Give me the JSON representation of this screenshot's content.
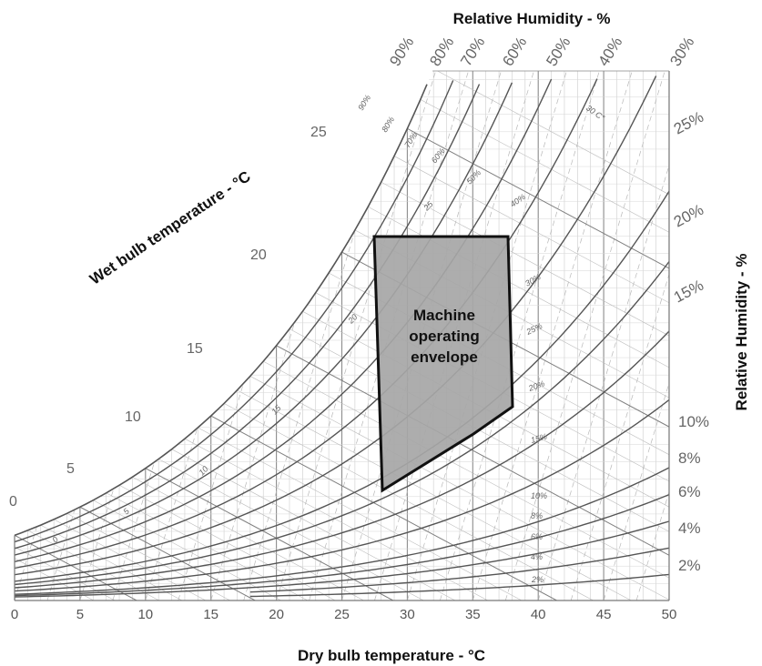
{
  "chart_data": {
    "type": "psychrometric",
    "title": "",
    "xlabel": "Dry bulb temperature - °C",
    "wet_bulb_axis_label": "Wet bulb temperature - °C",
    "rh_top_label": "Relative Humidity - %",
    "rh_right_label": "Relative Humidity - %",
    "xlim": [
      0,
      50
    ],
    "x_ticks": [
      "0",
      "5",
      "10",
      "15",
      "20",
      "25",
      "30",
      "35",
      "40",
      "45",
      "50"
    ],
    "rh_top_ticks": [
      "90%",
      "80%",
      "70%",
      "60%",
      "50%",
      "40%",
      "30%"
    ],
    "rh_right_ticks": [
      "25%",
      "20%",
      "15%",
      "10%",
      "8%",
      "6%",
      "4%",
      "2%"
    ],
    "rh_inline_labels": [
      "90%",
      "80%",
      "70%",
      "60%",
      "50%",
      "40%",
      "30%",
      "25%",
      "20%",
      "15%",
      "10%",
      "8%",
      "6%",
      "4%",
      "2%"
    ],
    "wet_bulb_ticks": [
      "0",
      "5",
      "10",
      "15",
      "20",
      "25"
    ],
    "wet_bulb_inline_labels": [
      "0",
      "5",
      "10",
      "15",
      "20",
      "25"
    ],
    "dry_bulb_inline_label": "30 C°",
    "envelope": {
      "label_lines": [
        "Machine",
        "operating",
        "envelope"
      ],
      "fill": "#a6a6a6",
      "corners_dry_bulb_c": [
        27,
        27,
        37.5,
        38,
        28
      ]
    },
    "colors": {
      "curve": "#555555",
      "grid": "#bdbdbd",
      "dashed": "#b8b8b8",
      "envelope": "#a6a6a6"
    }
  }
}
